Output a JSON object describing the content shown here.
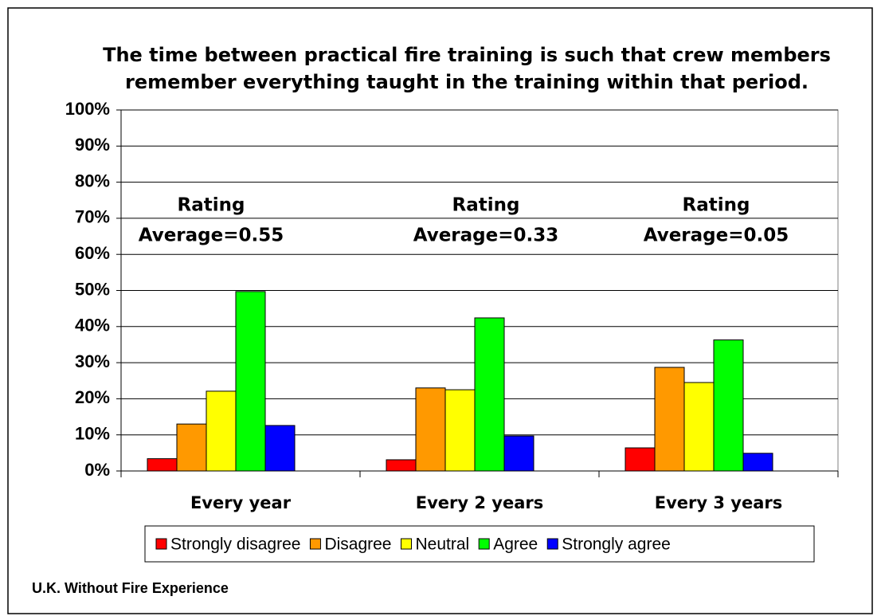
{
  "chart_data": {
    "type": "bar",
    "title": [
      "The time between practical fire training is such that crew members",
      "remember everything taught in the training within that period."
    ],
    "categories": [
      "Every year",
      "Every 2 years",
      "Every 3 years"
    ],
    "series": [
      {
        "name": "Strongly disagree",
        "color": "#ff0000",
        "values": [
          3.4,
          3.1,
          6.4
        ]
      },
      {
        "name": "Disagree",
        "color": "#ff9900",
        "values": [
          13.0,
          23.0,
          28.7
        ]
      },
      {
        "name": "Neutral",
        "color": "#ffff00",
        "values": [
          22.1,
          22.5,
          24.5
        ]
      },
      {
        "name": "Agree",
        "color": "#00ff00",
        "values": [
          49.7,
          42.4,
          36.3
        ]
      },
      {
        "name": "Strongly agree",
        "color": "#0000ff",
        "values": [
          12.6,
          9.7,
          4.9
        ]
      }
    ],
    "annotations": [
      [
        "Rating",
        "Average=0.55"
      ],
      [
        "Rating",
        "Average=0.33"
      ],
      [
        "Rating",
        "Average=0.05"
      ]
    ],
    "ylim": [
      0,
      100
    ],
    "yticks": [
      {
        "value": 0,
        "label": "0%"
      },
      {
        "value": 10,
        "label": "10%"
      },
      {
        "value": 20,
        "label": "20%"
      },
      {
        "value": 30,
        "label": "30%"
      },
      {
        "value": 40,
        "label": "40%"
      },
      {
        "value": 50,
        "label": "50%"
      },
      {
        "value": 60,
        "label": "60%"
      },
      {
        "value": 70,
        "label": "70%"
      },
      {
        "value": 80,
        "label": "80%"
      },
      {
        "value": 90,
        "label": "90%"
      },
      {
        "value": 100,
        "label": "100%"
      }
    ],
    "grid": true,
    "legend": "bottom",
    "footnote": "U.K. Without Fire Experience"
  }
}
